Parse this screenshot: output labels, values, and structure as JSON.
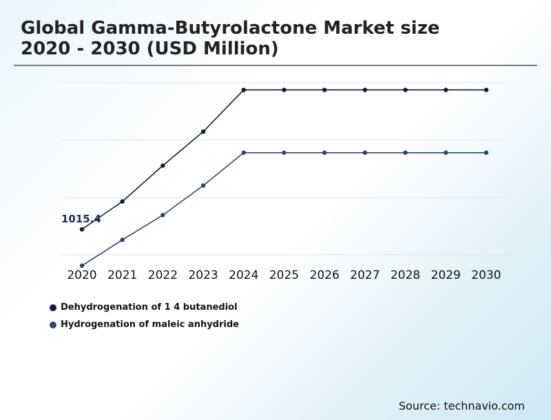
{
  "title_lines": [
    "Global Gamma-Butyrolactone Market size",
    "2020 - 2030 (USD Million)"
  ],
  "source": "Source: technavio.com",
  "chart_data": {
    "type": "line",
    "title": "Global Gamma-Butyrolactone Market size 2020 - 2030 (USD Million)",
    "xlabel": "",
    "ylabel": "",
    "y_axis_values_shown": false,
    "grid": true,
    "legend_position": "bottom-left",
    "categories": [
      "2020",
      "2021",
      "2022",
      "2023",
      "2024",
      "2025",
      "2026",
      "2027",
      "2028",
      "2029",
      "2030"
    ],
    "ylim": [
      900,
      1450
    ],
    "series": [
      {
        "name": "Dehydrogenation of 1 4 butanediol",
        "color": "#0d1b3e",
        "values": [
          1015.4,
          1091,
          1188,
          1280,
          1393,
          1393,
          1393,
          1393,
          1393,
          1393,
          1393
        ]
      },
      {
        "name": "Hydrogenation of maleic anhydride",
        "color": "#2e4374",
        "values": [
          917,
          987,
          1054,
          1134,
          1223,
          1223,
          1223,
          1223,
          1223,
          1223,
          1223
        ]
      }
    ],
    "annotations": [
      {
        "series": 0,
        "index": 0,
        "text": "1015.4"
      }
    ]
  }
}
